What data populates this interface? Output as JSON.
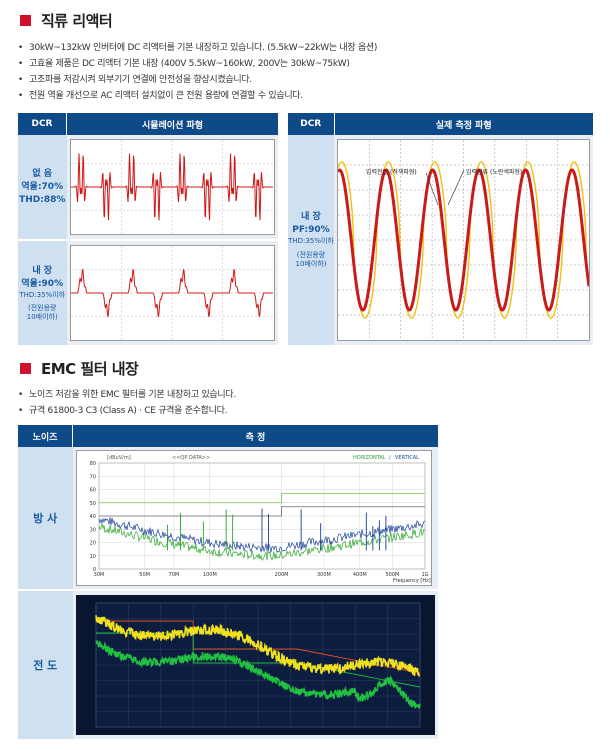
{
  "sec1": {
    "title": "직류 리액터",
    "bullets": [
      "30kW~132kW 인버터에 DC 리액터를 기본 내장하고 있습니다. (5.5kW~22kW는 내장 옵션)",
      "고효율 제품은 DC 리액터 기본 내장 (400V 5.5kW~160kW, 200V는 30kW~75kW)",
      "고조파를 저감시켜 외부기기 연결에 안전성을 향상시켰습니다.",
      "전원 역율 개선으로 AC 리액터 설치없이 큰 전원 용량에 연결할 수 있습니다."
    ],
    "table1": {
      "col_dcr": "DCR",
      "col_sim": "시뮬레이션 파형",
      "row1": {
        "a": "없 음",
        "b": "역율:70%",
        "c": "THD:88%"
      },
      "row2": {
        "a": "내 장",
        "b": "역율:90%",
        "c": "THD:35%이하",
        "d": "(전원용량",
        "e": "10배이하)"
      }
    },
    "table2": {
      "col_dcr": "DCR",
      "col_meas": "실제 측정 파형",
      "row": {
        "a": "내 장",
        "b": "PF:90%",
        "c": "THD:35%이하",
        "d": "(전원용량",
        "e": "10배이하)"
      },
      "ann_voltage": "입력전압 (적색파형)",
      "ann_current": "입력전류 (노란색파형)"
    }
  },
  "sec2": {
    "title": "EMC 필터 내장",
    "bullets": [
      "노이즈 저감을 위한 EMC 필터를 기본 내장하고 있습니다.",
      "규격 61800-3 C3 (Class A) · CE 규격을 준수합니다."
    ],
    "col_noise": "노이즈",
    "col_meas": "측 정",
    "row1": "방 사",
    "row2": "전 도",
    "radiated": {
      "unit": "[dBuV/m]",
      "title": "<<QP DATA>>",
      "legend_h": "HORIZONTAL",
      "legend_sep": "/",
      "legend_v": "VERTICAL",
      "y_ticks": [
        "80",
        "70",
        "60",
        "50",
        "40",
        "30",
        "20",
        "10",
        "0"
      ],
      "x_ticks": [
        "30M",
        "50M",
        "70M",
        "100M",
        "200M",
        "300M",
        "400M",
        "500M",
        "1G"
      ],
      "x_label": "Frequency [Hz]"
    }
  },
  "colors": {
    "accent": "#d0112b",
    "header": "#0e4a88",
    "label_bg": "#cfe0f1"
  }
}
